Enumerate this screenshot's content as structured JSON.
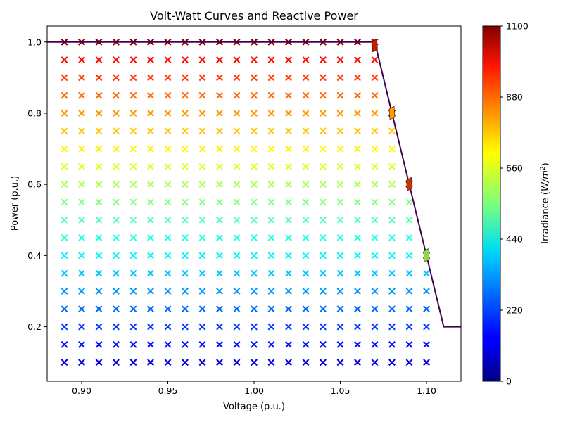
{
  "chart_data": {
    "type": "scatter",
    "title": "Volt-Watt Curves and Reactive Power",
    "xlabel": "Voltage (p.u.)",
    "ylabel": "Power (p.u.)",
    "xlim": [
      0.88,
      1.12
    ],
    "ylim": [
      0.047,
      1.045
    ],
    "xticks": [
      0.9,
      0.95,
      1.0,
      1.05,
      1.1
    ],
    "xtick_labels": [
      "0.90",
      "0.95",
      "1.00",
      "1.05",
      "1.10"
    ],
    "yticks": [
      0.2,
      0.4,
      0.6,
      0.8,
      1.0
    ],
    "ytick_labels": [
      "0.2",
      "0.4",
      "0.6",
      "0.8",
      "1.0"
    ],
    "grid": false,
    "marker": "x",
    "scatter_x": [
      0.89,
      0.9,
      0.91,
      0.92,
      0.93,
      0.94,
      0.95,
      0.96,
      0.97,
      0.98,
      0.99,
      1.0,
      1.01,
      1.02,
      1.03,
      1.04,
      1.05,
      1.06,
      1.07,
      1.08,
      1.09,
      1.1
    ],
    "irradiance_levels": [
      100,
      150,
      200,
      250,
      300,
      350,
      400,
      450,
      500,
      550,
      600,
      650,
      700,
      750,
      800,
      850,
      900,
      950,
      1000,
      1050,
      1100
    ],
    "curve": {
      "x": [
        0.88,
        1.07,
        1.11,
        1.12
      ],
      "y": [
        1.0,
        1.0,
        0.2,
        0.2
      ],
      "color": "#440154"
    },
    "quivers": [
      {
        "x": 1.07,
        "y": 0.99,
        "color": "#cc1a00"
      },
      {
        "x": 1.08,
        "y": 0.8,
        "color": "#ff9a00"
      },
      {
        "x": 1.09,
        "y": 0.6,
        "color": "#cc3300"
      },
      {
        "x": 1.1,
        "y": 0.4,
        "color": "#88dd44"
      }
    ],
    "colorbar": {
      "label": "Irradiance (W/m²)",
      "label_main": "Irradiance (",
      "label_unit": "W/m",
      "label_sup": "2",
      "label_close": ")",
      "min": 0,
      "max": 1100,
      "ticks": [
        0,
        220,
        440,
        660,
        880,
        1100
      ],
      "tick_labels": [
        "0",
        "220",
        "440",
        "660",
        "880",
        "1100"
      ],
      "colormap": "jet"
    }
  }
}
